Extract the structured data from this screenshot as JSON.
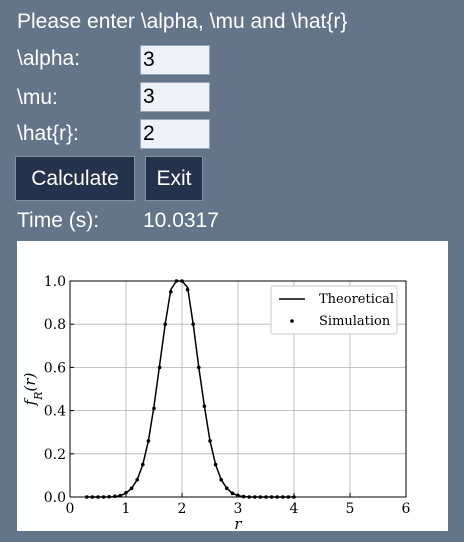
{
  "prompt": "Please enter \\alpha, \\mu and \\hat{r}",
  "fields": [
    {
      "label": "\\alpha:",
      "value": "3"
    },
    {
      "label": "\\mu:",
      "value": "3"
    },
    {
      "label": "\\hat{r}:",
      "value": "2"
    }
  ],
  "buttons": {
    "calculate": "Calculate",
    "exit": "Exit"
  },
  "time": {
    "label": "Time (s):",
    "value": "10.0317"
  },
  "chart_data": {
    "type": "line",
    "xlabel": "r",
    "ylabel": "f_R(r)",
    "xlim": [
      0,
      6
    ],
    "ylim": [
      0,
      1.0
    ],
    "xticks": [
      "0",
      "1",
      "2",
      "3",
      "4",
      "5",
      "6"
    ],
    "yticks": [
      "0.0",
      "0.2",
      "0.4",
      "0.6",
      "0.8",
      "1.0"
    ],
    "grid": true,
    "legend": "top-right",
    "series": [
      {
        "name": "Theoretical",
        "style": "line",
        "x": [
          0.3,
          0.5,
          0.7,
          0.8,
          0.9,
          1.0,
          1.1,
          1.2,
          1.3,
          1.4,
          1.5,
          1.6,
          1.7,
          1.8,
          1.9,
          2.0,
          2.1,
          2.2,
          2.3,
          2.4,
          2.5,
          2.6,
          2.7,
          2.8,
          2.9,
          3.0,
          3.1,
          3.2,
          3.4,
          3.6,
          4.0
        ],
        "y": [
          0.0,
          0.0,
          0.0,
          0.002,
          0.006,
          0.018,
          0.04,
          0.08,
          0.15,
          0.26,
          0.42,
          0.61,
          0.8,
          0.96,
          1.0,
          1.0,
          0.97,
          0.8,
          0.6,
          0.42,
          0.26,
          0.15,
          0.08,
          0.04,
          0.017,
          0.006,
          0.002,
          0.0,
          0.0,
          0.0,
          0.0
        ]
      },
      {
        "name": "Simulation",
        "style": "dots",
        "x": [
          0.3,
          0.4,
          0.5,
          0.6,
          0.7,
          0.8,
          0.9,
          1.0,
          1.1,
          1.2,
          1.3,
          1.4,
          1.5,
          1.6,
          1.7,
          1.8,
          1.9,
          2.0,
          2.1,
          2.2,
          2.3,
          2.4,
          2.5,
          2.6,
          2.7,
          2.8,
          2.9,
          3.0,
          3.1,
          3.2,
          3.3,
          3.4,
          3.5,
          3.6,
          3.7,
          3.8,
          3.9,
          4.0
        ],
        "y": [
          0.0,
          0.0,
          0.0,
          0.0,
          0.001,
          0.003,
          0.007,
          0.02,
          0.04,
          0.08,
          0.15,
          0.26,
          0.41,
          0.6,
          0.8,
          0.95,
          1.0,
          1.0,
          0.96,
          0.8,
          0.6,
          0.42,
          0.26,
          0.15,
          0.08,
          0.04,
          0.017,
          0.006,
          0.002,
          0.0,
          0.0,
          0.0,
          0.0,
          0.0,
          0.0,
          0.0,
          0.0,
          0.0
        ]
      }
    ]
  }
}
